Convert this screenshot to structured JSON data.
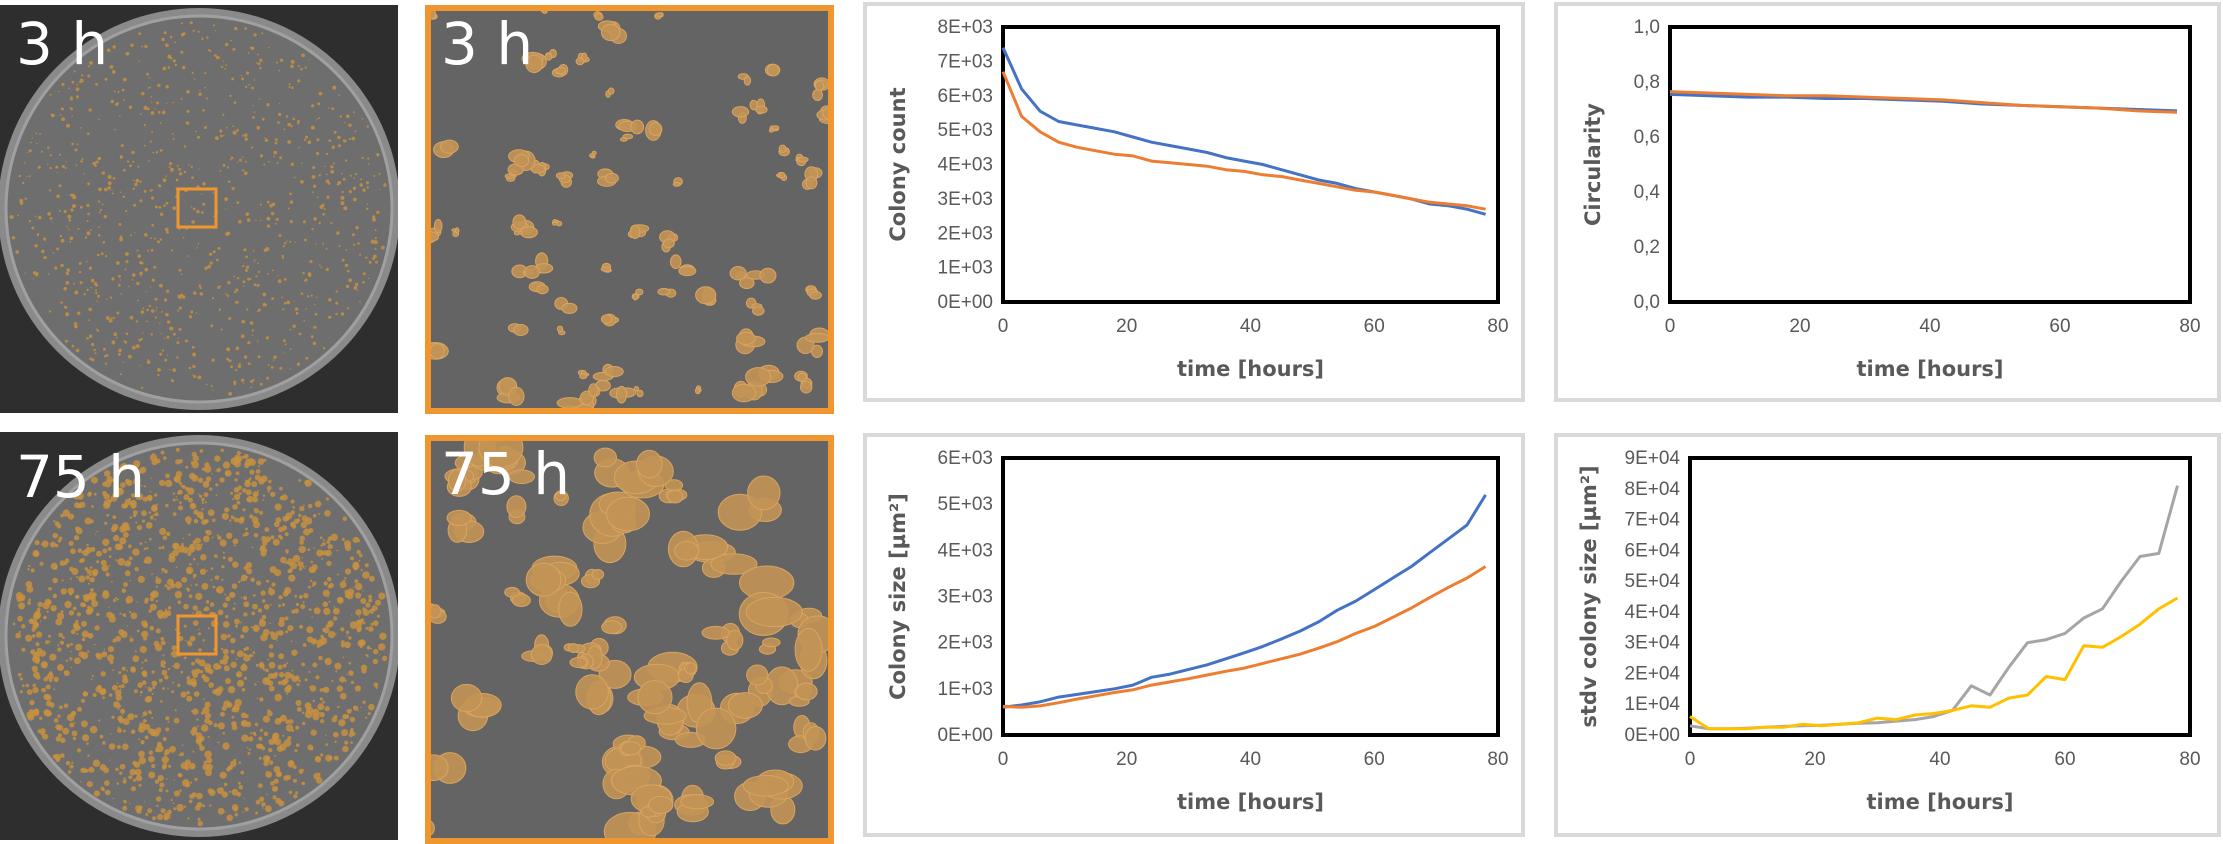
{
  "images": {
    "well_top": {
      "time_label": "3 h"
    },
    "zoom_top": {
      "time_label": "3 h"
    },
    "well_bottom": {
      "time_label": "75 h"
    },
    "zoom_bottom": {
      "time_label": "75 h"
    }
  },
  "colors": {
    "blue": "#4472c4",
    "orange": "#ed7d31",
    "gray": "#a5a5a5",
    "yellow": "#ffc000",
    "highlight": "#f0962e"
  },
  "chart_data": [
    {
      "id": "count",
      "type": "line",
      "title": "",
      "xlabel": "time [hours]",
      "ylabel": "Colony count",
      "xlim": [
        0,
        80
      ],
      "ylim": [
        0,
        8000
      ],
      "x_ticks": [
        "0",
        "20",
        "40",
        "60",
        "80"
      ],
      "y_ticks": [
        "0E+00",
        "1E+03",
        "2E+03",
        "3E+03",
        "4E+03",
        "5E+03",
        "6E+03",
        "7E+03",
        "8E+03"
      ],
      "series": [
        {
          "name": "series 1",
          "color": "#4472c4",
          "x": [
            0,
            3,
            6,
            9,
            12,
            15,
            18,
            21,
            24,
            27,
            30,
            33,
            36,
            39,
            42,
            45,
            48,
            51,
            54,
            57,
            60,
            63,
            66,
            69,
            72,
            75,
            78
          ],
          "y": [
            7400,
            6200,
            5550,
            5250,
            5150,
            5050,
            4950,
            4800,
            4650,
            4550,
            4450,
            4350,
            4200,
            4100,
            4000,
            3850,
            3700,
            3550,
            3450,
            3300,
            3200,
            3100,
            3000,
            2850,
            2800,
            2700,
            2550
          ]
        },
        {
          "name": "series 2",
          "color": "#ed7d31",
          "x": [
            0,
            3,
            6,
            9,
            12,
            15,
            18,
            21,
            24,
            27,
            30,
            33,
            36,
            39,
            42,
            45,
            48,
            51,
            54,
            57,
            60,
            63,
            66,
            69,
            72,
            75,
            78
          ],
          "y": [
            6700,
            5400,
            4950,
            4650,
            4500,
            4400,
            4300,
            4250,
            4100,
            4050,
            4000,
            3950,
            3850,
            3800,
            3700,
            3650,
            3550,
            3450,
            3350,
            3250,
            3200,
            3100,
            3000,
            2900,
            2850,
            2800,
            2700
          ]
        }
      ]
    },
    {
      "id": "circ",
      "type": "line",
      "title": "",
      "xlabel": "time [hours]",
      "ylabel": "Circularity",
      "xlim": [
        0,
        80
      ],
      "ylim": [
        0,
        1
      ],
      "x_ticks": [
        "0",
        "20",
        "40",
        "60",
        "80"
      ],
      "y_ticks": [
        "0,0",
        "0,2",
        "0,4",
        "0,6",
        "0,8",
        "1,0"
      ],
      "series": [
        {
          "name": "series 1",
          "color": "#4472c4",
          "x": [
            0,
            6,
            12,
            18,
            24,
            30,
            36,
            42,
            48,
            54,
            60,
            66,
            72,
            78
          ],
          "y": [
            0.755,
            0.75,
            0.745,
            0.745,
            0.74,
            0.74,
            0.735,
            0.73,
            0.72,
            0.715,
            0.71,
            0.705,
            0.7,
            0.695
          ]
        },
        {
          "name": "series 2",
          "color": "#ed7d31",
          "x": [
            0,
            6,
            12,
            18,
            24,
            30,
            36,
            42,
            48,
            54,
            60,
            66,
            72,
            78
          ],
          "y": [
            0.765,
            0.76,
            0.755,
            0.75,
            0.75,
            0.745,
            0.74,
            0.735,
            0.725,
            0.715,
            0.71,
            0.705,
            0.695,
            0.69
          ]
        }
      ]
    },
    {
      "id": "size",
      "type": "line",
      "title": "",
      "xlabel": "time [hours]",
      "ylabel": "Colony size [µm²]",
      "xlim": [
        0,
        80
      ],
      "ylim": [
        0,
        6000
      ],
      "x_ticks": [
        "0",
        "20",
        "40",
        "60",
        "80"
      ],
      "y_ticks": [
        "0E+00",
        "1E+03",
        "2E+03",
        "3E+03",
        "4E+03",
        "5E+03",
        "6E+03"
      ],
      "series": [
        {
          "name": "series 1",
          "color": "#4472c4",
          "x": [
            0,
            3,
            6,
            9,
            12,
            15,
            18,
            21,
            24,
            27,
            30,
            33,
            36,
            39,
            42,
            45,
            48,
            51,
            54,
            57,
            60,
            63,
            66,
            69,
            72,
            75,
            78
          ],
          "y": [
            600,
            650,
            720,
            820,
            880,
            940,
            1000,
            1080,
            1250,
            1320,
            1420,
            1520,
            1650,
            1780,
            1920,
            2080,
            2250,
            2450,
            2700,
            2900,
            3150,
            3400,
            3650,
            3950,
            4250,
            4550,
            5200
          ]
        },
        {
          "name": "series 2",
          "color": "#ed7d31",
          "x": [
            0,
            3,
            6,
            9,
            12,
            15,
            18,
            21,
            24,
            27,
            30,
            33,
            36,
            39,
            42,
            45,
            48,
            51,
            54,
            57,
            60,
            63,
            66,
            69,
            72,
            75,
            78
          ],
          "y": [
            620,
            600,
            630,
            700,
            780,
            850,
            920,
            980,
            1080,
            1150,
            1220,
            1300,
            1380,
            1450,
            1550,
            1650,
            1750,
            1880,
            2020,
            2200,
            2350,
            2550,
            2750,
            2980,
            3200,
            3400,
            3650
          ]
        }
      ]
    },
    {
      "id": "stdv",
      "type": "line",
      "title": "",
      "xlabel": "time [hours]",
      "ylabel": "stdv colony size [µm²]",
      "xlim": [
        0,
        80
      ],
      "ylim": [
        0,
        90000
      ],
      "x_ticks": [
        "0",
        "20",
        "40",
        "60",
        "80"
      ],
      "y_ticks": [
        "0E+00",
        "1E+04",
        "2E+04",
        "3E+04",
        "4E+04",
        "5E+04",
        "6E+04",
        "7E+04",
        "8E+04",
        "9E+04"
      ],
      "series": [
        {
          "name": "series 1",
          "color": "#a5a5a5",
          "x": [
            0,
            3,
            6,
            9,
            12,
            15,
            18,
            21,
            24,
            27,
            30,
            33,
            36,
            39,
            42,
            45,
            48,
            51,
            54,
            57,
            60,
            63,
            66,
            69,
            72,
            75,
            78
          ],
          "y": [
            3000,
            2000,
            2000,
            2200,
            2500,
            2800,
            3000,
            3200,
            3500,
            3800,
            4000,
            4500,
            5000,
            6000,
            8000,
            16000,
            13000,
            22000,
            30000,
            31000,
            33000,
            38000,
            41000,
            50000,
            58000,
            59000,
            81000
          ]
        },
        {
          "name": "series 2",
          "color": "#ffc000",
          "x": [
            0,
            3,
            6,
            9,
            12,
            15,
            18,
            21,
            24,
            27,
            30,
            33,
            36,
            39,
            42,
            45,
            48,
            51,
            54,
            57,
            60,
            63,
            66,
            69,
            72,
            75,
            78
          ],
          "y": [
            6000,
            2000,
            2000,
            2000,
            2500,
            2500,
            3500,
            3000,
            3500,
            4000,
            5500,
            5000,
            6500,
            7000,
            8000,
            9500,
            9000,
            12000,
            13000,
            19000,
            18000,
            29000,
            28500,
            32000,
            36000,
            41000,
            44500
          ]
        }
      ]
    }
  ]
}
